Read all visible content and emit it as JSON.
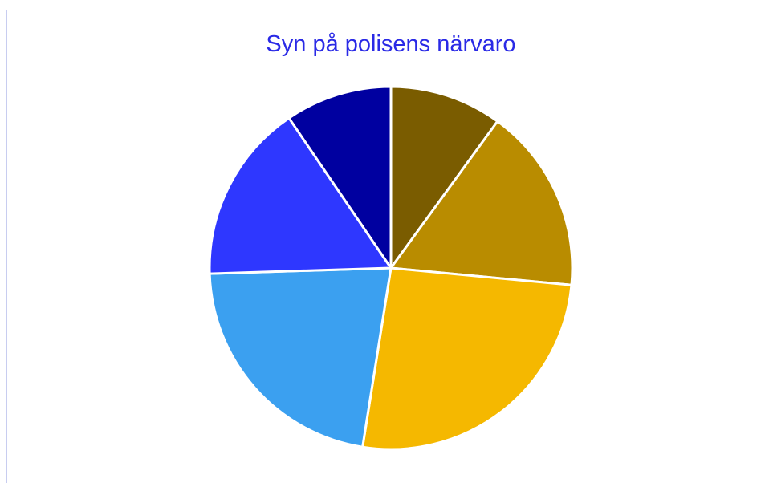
{
  "chart_data": {
    "type": "pie",
    "title": "Syn på polisens närvaro",
    "values": [
      10,
      16.5,
      26,
      22,
      16,
      9.5
    ],
    "colors": [
      "#7a5c00",
      "#b98c00",
      "#f5b800",
      "#3ba0f0",
      "#2e37ff",
      "#0000a0"
    ],
    "start_angle": 0,
    "direction": "clockwise"
  }
}
